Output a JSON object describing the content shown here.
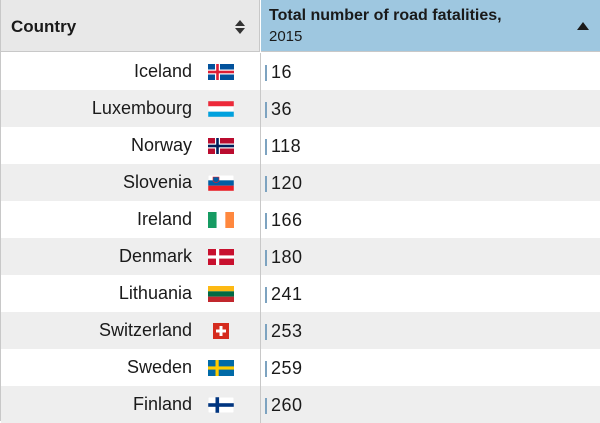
{
  "header": {
    "country_label": "Country",
    "value_label": "Total number of road fatalities,",
    "value_sub": "2015"
  },
  "rows": [
    {
      "country": "Iceland",
      "value": "16",
      "flag": "iceland-flag-icon"
    },
    {
      "country": "Luxembourg",
      "value": "36",
      "flag": "luxembourg-flag-icon"
    },
    {
      "country": "Norway",
      "value": "118",
      "flag": "norway-flag-icon"
    },
    {
      "country": "Slovenia",
      "value": "120",
      "flag": "slovenia-flag-icon"
    },
    {
      "country": "Ireland",
      "value": "166",
      "flag": "ireland-flag-icon"
    },
    {
      "country": "Denmark",
      "value": "180",
      "flag": "denmark-flag-icon"
    },
    {
      "country": "Lithuania",
      "value": "241",
      "flag": "lithuania-flag-icon"
    },
    {
      "country": "Switzerland",
      "value": "253",
      "flag": "switzerland-flag-icon"
    },
    {
      "country": "Sweden",
      "value": "259",
      "flag": "sweden-flag-icon"
    },
    {
      "country": "Finland",
      "value": "260",
      "flag": "finland-flag-icon"
    }
  ],
  "colors": {
    "header_active": "#9ec7e0",
    "header_inactive": "#e8e8e8",
    "row_alt": "#eeeeee",
    "bar": "#7da3c0"
  }
}
